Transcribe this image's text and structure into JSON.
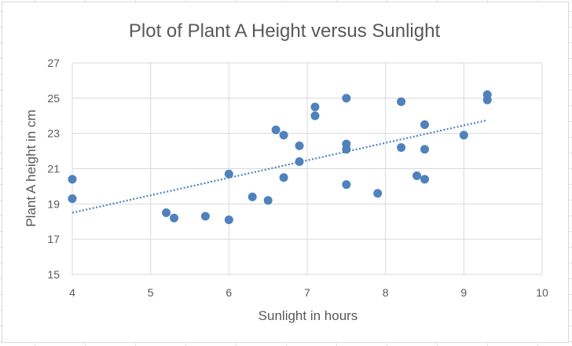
{
  "chart_data": {
    "type": "scatter",
    "title": "Plot of Plant A Height versus Sunlight",
    "xlabel": "Sunlight in hours",
    "ylabel": "Plant A height in cm",
    "xlim": [
      4,
      10
    ],
    "ylim": [
      15,
      27
    ],
    "xticks": [
      "4",
      "5",
      "6",
      "7",
      "8",
      "9",
      "10"
    ],
    "yticks": [
      "15",
      "17",
      "19",
      "21",
      "23",
      "25",
      "27"
    ],
    "grid": true,
    "legend": "none",
    "marker_color": "#4f81bd",
    "trendline": {
      "type": "linear",
      "style": "dotted",
      "color": "#4f81bd",
      "x_range": [
        4,
        9.3
      ],
      "y_range": [
        18.5,
        23.75
      ]
    },
    "points": [
      {
        "x": 4.0,
        "y": 20.4
      },
      {
        "x": 4.0,
        "y": 19.3
      },
      {
        "x": 5.2,
        "y": 18.5
      },
      {
        "x": 5.3,
        "y": 18.2
      },
      {
        "x": 5.7,
        "y": 18.3
      },
      {
        "x": 6.0,
        "y": 18.1
      },
      {
        "x": 6.0,
        "y": 20.7
      },
      {
        "x": 6.3,
        "y": 19.4
      },
      {
        "x": 6.5,
        "y": 19.2
      },
      {
        "x": 6.6,
        "y": 23.2
      },
      {
        "x": 6.7,
        "y": 22.9
      },
      {
        "x": 6.7,
        "y": 20.5
      },
      {
        "x": 6.9,
        "y": 22.3
      },
      {
        "x": 6.9,
        "y": 21.4
      },
      {
        "x": 7.1,
        "y": 24.5
      },
      {
        "x": 7.1,
        "y": 24.0
      },
      {
        "x": 7.5,
        "y": 25.0
      },
      {
        "x": 7.5,
        "y": 22.4
      },
      {
        "x": 7.5,
        "y": 22.1
      },
      {
        "x": 7.5,
        "y": 20.1
      },
      {
        "x": 7.9,
        "y": 19.6
      },
      {
        "x": 8.2,
        "y": 24.8
      },
      {
        "x": 8.2,
        "y": 22.2
      },
      {
        "x": 8.4,
        "y": 20.6
      },
      {
        "x": 8.5,
        "y": 23.5
      },
      {
        "x": 8.5,
        "y": 22.1
      },
      {
        "x": 8.5,
        "y": 20.4
      },
      {
        "x": 9.0,
        "y": 22.9
      },
      {
        "x": 9.3,
        "y": 25.2
      },
      {
        "x": 9.3,
        "y": 24.9
      }
    ]
  }
}
